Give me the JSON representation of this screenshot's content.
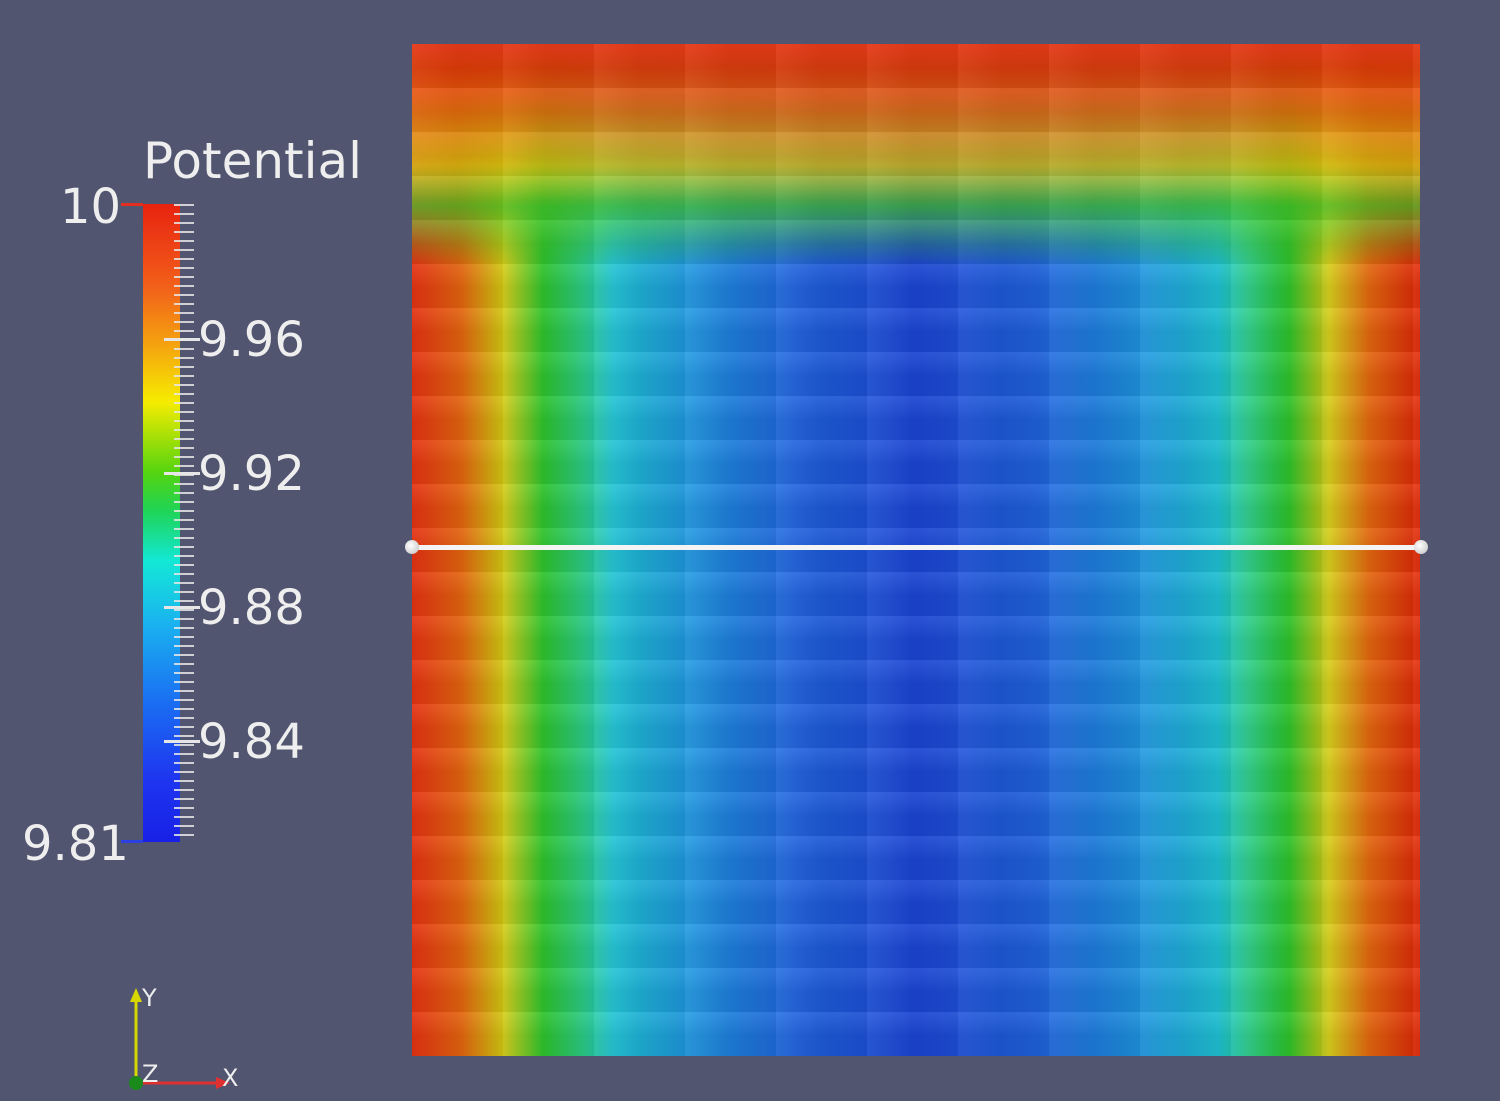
{
  "scalar_bar": {
    "title": "Potential",
    "max_label": "10",
    "min_label": "9.81",
    "tick_labels": [
      "9.96",
      "9.92",
      "9.88",
      "9.84"
    ],
    "range": [
      9.81,
      10
    ],
    "colormap": "rainbow (blue to red)"
  },
  "orientation_axes": {
    "y": "Y",
    "z": "Z",
    "x": "X",
    "y_color": "#d8d800",
    "x_color": "#e03030",
    "z_color": "#1a8a1a"
  },
  "colors": {
    "background": "#525570",
    "probe_line": "#f4f4f4"
  }
}
